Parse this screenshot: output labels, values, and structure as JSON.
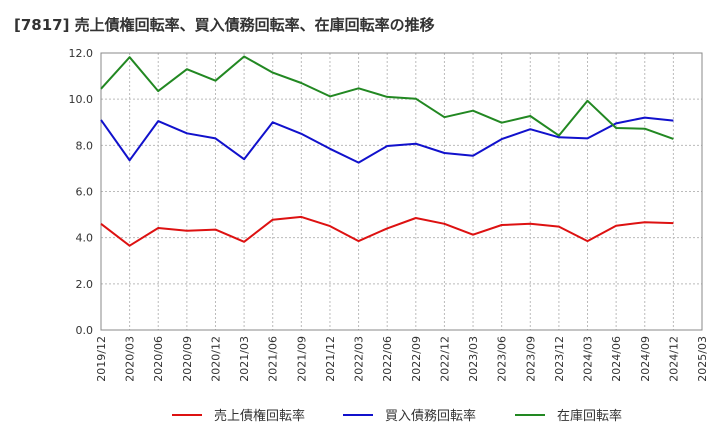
{
  "chart_data": {
    "type": "line",
    "title": "[7817]  売上債権回転率、買入債務回転率、在庫回転率の推移",
    "xlabel": "",
    "ylabel": "",
    "ylim": [
      0,
      12
    ],
    "yticks": [
      0.0,
      2.0,
      4.0,
      6.0,
      8.0,
      10.0,
      12.0
    ],
    "ytick_labels": [
      "0.0",
      "2.0",
      "4.0",
      "6.0",
      "8.0",
      "10.0",
      "12.0"
    ],
    "grid": true,
    "legend_position": "bottom",
    "categories": [
      "2019/12",
      "2020/03",
      "2020/06",
      "2020/09",
      "2020/12",
      "2021/03",
      "2021/06",
      "2021/09",
      "2021/12",
      "2022/03",
      "2022/06",
      "2022/09",
      "2022/12",
      "2023/03",
      "2023/06",
      "2023/09",
      "2023/12",
      "2024/03",
      "2024/06",
      "2024/09",
      "2024/12",
      "2025/03"
    ],
    "series": [
      {
        "name": "売上債権回転率",
        "color": "#dd1111",
        "values": [
          4.6,
          3.65,
          4.42,
          4.3,
          4.35,
          3.82,
          4.78,
          4.9,
          4.5,
          3.85,
          4.4,
          4.85,
          4.6,
          4.13,
          4.55,
          4.6,
          4.48,
          3.85,
          4.52,
          4.67,
          4.63,
          null
        ]
      },
      {
        "name": "買入債務回転率",
        "color": "#1111cc",
        "values": [
          9.1,
          7.35,
          9.05,
          8.52,
          8.3,
          7.4,
          9.0,
          8.5,
          7.85,
          7.25,
          7.97,
          8.07,
          7.67,
          7.55,
          8.27,
          8.7,
          8.35,
          8.3,
          8.95,
          9.2,
          9.07,
          null
        ]
      },
      {
        "name": "在庫回転率",
        "color": "#228822",
        "values": [
          10.45,
          11.82,
          10.35,
          11.3,
          10.8,
          11.85,
          11.15,
          10.7,
          10.12,
          10.47,
          10.1,
          10.02,
          9.22,
          9.5,
          8.98,
          9.27,
          8.42,
          9.93,
          8.75,
          8.72,
          8.28,
          null
        ]
      }
    ]
  }
}
